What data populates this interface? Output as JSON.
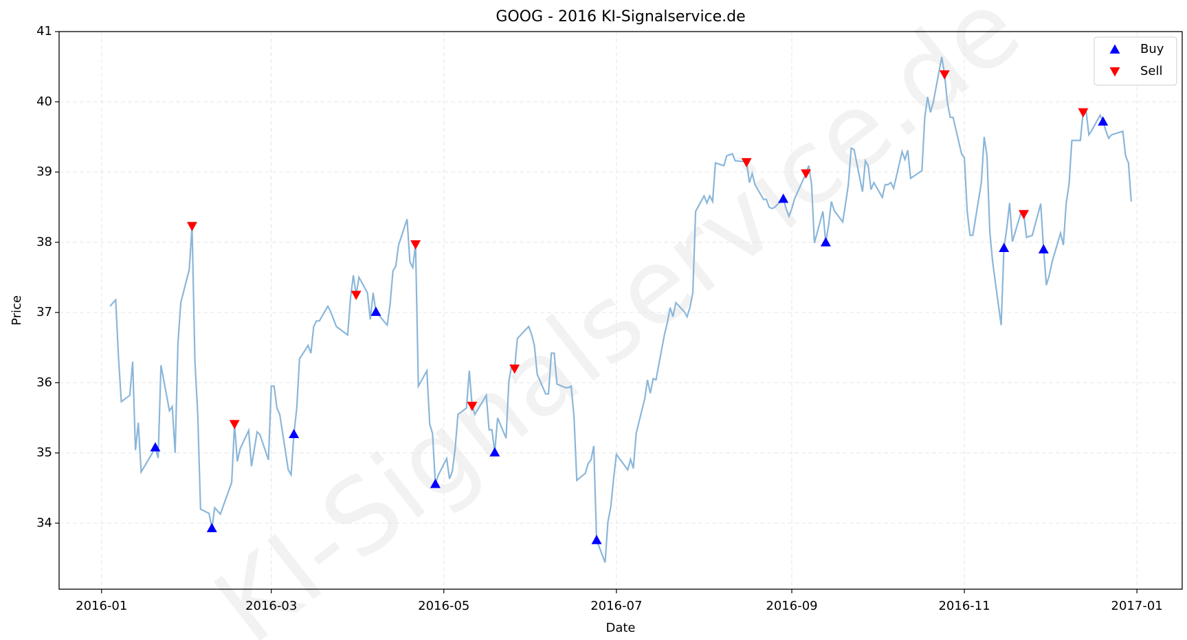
{
  "chart_data": {
    "type": "line",
    "title": "GOOG - 2016 KI-Signalservice.de",
    "watermark": "KI-Signalservice.de",
    "xlabel": "Date",
    "ylabel": "Price",
    "color": "#8ab6d9",
    "x": [
      "2016-01-04",
      "2016-01-06",
      "2016-01-07",
      "2016-01-08",
      "2016-01-11",
      "2016-01-12",
      "2016-01-13",
      "2016-01-14",
      "2016-01-15",
      "2016-01-19",
      "2016-01-20",
      "2016-01-21",
      "2016-01-22",
      "2016-01-25",
      "2016-01-26",
      "2016-01-27",
      "2016-01-28",
      "2016-01-29",
      "2016-02-01",
      "2016-02-02",
      "2016-02-03",
      "2016-02-04",
      "2016-02-05",
      "2016-02-08",
      "2016-02-09",
      "2016-02-10",
      "2016-02-12",
      "2016-02-16",
      "2016-02-17",
      "2016-02-18",
      "2016-02-19",
      "2016-02-22",
      "2016-02-23",
      "2016-02-25",
      "2016-02-26",
      "2016-02-29",
      "2016-03-01",
      "2016-03-02",
      "2016-03-03",
      "2016-03-04",
      "2016-03-07",
      "2016-03-08",
      "2016-03-09",
      "2016-03-10",
      "2016-03-11",
      "2016-03-14",
      "2016-03-15",
      "2016-03-16",
      "2016-03-17",
      "2016-03-18",
      "2016-03-21",
      "2016-03-22",
      "2016-03-24",
      "2016-03-28",
      "2016-03-29",
      "2016-03-30",
      "2016-03-31",
      "2016-04-01",
      "2016-04-04",
      "2016-04-05",
      "2016-04-06",
      "2016-04-07",
      "2016-04-11",
      "2016-04-12",
      "2016-04-13",
      "2016-04-14",
      "2016-04-15",
      "2016-04-18",
      "2016-04-19",
      "2016-04-20",
      "2016-04-21",
      "2016-04-22",
      "2016-04-25",
      "2016-04-26",
      "2016-04-27",
      "2016-04-28",
      "2016-04-29",
      "2016-05-02",
      "2016-05-03",
      "2016-05-04",
      "2016-05-05",
      "2016-05-06",
      "2016-05-09",
      "2016-05-10",
      "2016-05-11",
      "2016-05-12",
      "2016-05-16",
      "2016-05-17",
      "2016-05-18",
      "2016-05-19",
      "2016-05-20",
      "2016-05-23",
      "2016-05-24",
      "2016-05-25",
      "2016-05-26",
      "2016-05-27",
      "2016-05-31",
      "2016-06-01",
      "2016-06-02",
      "2016-06-03",
      "2016-06-06",
      "2016-06-07",
      "2016-06-08",
      "2016-06-09",
      "2016-06-10",
      "2016-06-13",
      "2016-06-14",
      "2016-06-15",
      "2016-06-16",
      "2016-06-17",
      "2016-06-20",
      "2016-06-21",
      "2016-06-22",
      "2016-06-23",
      "2016-06-24",
      "2016-06-27",
      "2016-06-28",
      "2016-06-29",
      "2016-06-30",
      "2016-07-01",
      "2016-07-05",
      "2016-07-06",
      "2016-07-07",
      "2016-07-08",
      "2016-07-11",
      "2016-07-12",
      "2016-07-13",
      "2016-07-14",
      "2016-07-15",
      "2016-07-18",
      "2016-07-19",
      "2016-07-20",
      "2016-07-21",
      "2016-07-22",
      "2016-07-25",
      "2016-07-26",
      "2016-07-27",
      "2016-07-28",
      "2016-07-29",
      "2016-08-01",
      "2016-08-02",
      "2016-08-03",
      "2016-08-04",
      "2016-08-05",
      "2016-08-08",
      "2016-08-09",
      "2016-08-11",
      "2016-08-12",
      "2016-08-15",
      "2016-08-16",
      "2016-08-17",
      "2016-08-18",
      "2016-08-19",
      "2016-08-22",
      "2016-08-23",
      "2016-08-24",
      "2016-08-25",
      "2016-08-26",
      "2016-08-29",
      "2016-08-30",
      "2016-08-31",
      "2016-09-01",
      "2016-09-02",
      "2016-09-06",
      "2016-09-07",
      "2016-09-08",
      "2016-09-09",
      "2016-09-12",
      "2016-09-13",
      "2016-09-14",
      "2016-09-15",
      "2016-09-16",
      "2016-09-19",
      "2016-09-20",
      "2016-09-21",
      "2016-09-22",
      "2016-09-23",
      "2016-09-26",
      "2016-09-27",
      "2016-09-28",
      "2016-09-29",
      "2016-09-30",
      "2016-10-03",
      "2016-10-04",
      "2016-10-05",
      "2016-10-06",
      "2016-10-07",
      "2016-10-10",
      "2016-10-11",
      "2016-10-12",
      "2016-10-13",
      "2016-10-17",
      "2016-10-18",
      "2016-10-19",
      "2016-10-20",
      "2016-10-21",
      "2016-10-24",
      "2016-10-25",
      "2016-10-26",
      "2016-10-27",
      "2016-10-28",
      "2016-10-31",
      "2016-11-01",
      "2016-11-02",
      "2016-11-03",
      "2016-11-04",
      "2016-11-07",
      "2016-11-08",
      "2016-11-09",
      "2016-11-10",
      "2016-11-11",
      "2016-11-14",
      "2016-11-15",
      "2016-11-16",
      "2016-11-17",
      "2016-11-18",
      "2016-11-21",
      "2016-11-22",
      "2016-11-23",
      "2016-11-25",
      "2016-11-28",
      "2016-11-29",
      "2016-11-30",
      "2016-12-01",
      "2016-12-02",
      "2016-12-05",
      "2016-12-06",
      "2016-12-07",
      "2016-12-08",
      "2016-12-09",
      "2016-12-12",
      "2016-12-13",
      "2016-12-14",
      "2016-12-15",
      "2016-12-16",
      "2016-12-19",
      "2016-12-20",
      "2016-12-21",
      "2016-12-22",
      "2016-12-23",
      "2016-12-27",
      "2016-12-28",
      "2016-12-29",
      "2016-12-30"
    ],
    "values": [
      37.09,
      37.18,
      36.36,
      35.73,
      35.82,
      36.3,
      35.04,
      35.43,
      34.73,
      35.0,
      35.08,
      34.93,
      36.25,
      35.6,
      35.66,
      35.0,
      36.56,
      37.14,
      37.61,
      38.23,
      36.31,
      35.55,
      34.2,
      34.14,
      33.93,
      34.22,
      34.13,
      34.58,
      35.41,
      34.88,
      35.06,
      35.32,
      34.81,
      35.3,
      35.26,
      34.9,
      35.95,
      35.95,
      35.64,
      35.55,
      34.76,
      34.69,
      35.27,
      35.63,
      36.34,
      36.53,
      36.42,
      36.8,
      36.88,
      36.88,
      37.09,
      37.01,
      36.8,
      36.68,
      37.2,
      37.53,
      37.25,
      37.5,
      37.28,
      36.9,
      37.28,
      37.01,
      36.82,
      37.12,
      37.59,
      37.66,
      37.96,
      38.33,
      37.72,
      37.64,
      37.97,
      35.95,
      36.17,
      35.41,
      35.28,
      34.56,
      34.68,
      34.92,
      34.63,
      34.74,
      35.06,
      35.55,
      35.64,
      36.17,
      35.67,
      35.55,
      35.82,
      35.33,
      35.33,
      35.01,
      35.5,
      35.21,
      36.02,
      36.25,
      36.2,
      36.63,
      36.8,
      36.69,
      36.53,
      36.12,
      35.84,
      35.84,
      36.42,
      36.42,
      35.98,
      35.93,
      35.93,
      35.95,
      35.52,
      34.61,
      34.71,
      34.85,
      34.9,
      35.1,
      33.76,
      33.44,
      34.02,
      34.23,
      34.63,
      34.98,
      34.76,
      34.91,
      34.78,
      35.28,
      35.77,
      36.04,
      35.85,
      36.06,
      36.04,
      36.69,
      36.85,
      37.07,
      36.94,
      37.14,
      37.01,
      36.94,
      37.07,
      37.28,
      38.44,
      38.66,
      38.56,
      38.66,
      38.58,
      39.13,
      39.09,
      39.23,
      39.26,
      39.16,
      39.15,
      39.14,
      38.85,
      38.98,
      38.82,
      38.61,
      38.61,
      38.5,
      38.48,
      38.5,
      38.62,
      38.48,
      38.37,
      38.48,
      38.62,
      38.98,
      39.09,
      38.82,
      37.99,
      38.44,
      38.0,
      38.24,
      38.58,
      38.45,
      38.29,
      38.55,
      38.82,
      39.34,
      39.32,
      38.72,
      39.16,
      39.09,
      38.75,
      38.85,
      38.64,
      38.82,
      38.82,
      38.85,
      38.77,
      39.29,
      39.18,
      39.31,
      38.91,
      39.02,
      39.78,
      40.07,
      39.85,
      39.99,
      40.64,
      40.39,
      39.99,
      39.78,
      39.78,
      39.26,
      39.2,
      38.44,
      38.1,
      38.1,
      38.85,
      39.5,
      39.23,
      38.15,
      37.72,
      36.82,
      37.92,
      38.2,
      38.56,
      38.01,
      38.42,
      38.4,
      38.07,
      38.1,
      38.55,
      37.9,
      37.39,
      37.53,
      37.72,
      38.13,
      37.96,
      38.55,
      38.83,
      39.45,
      39.45,
      39.85,
      39.88,
      39.53,
      39.59,
      39.81,
      39.72,
      39.59,
      39.48,
      39.53,
      39.58,
      39.23,
      39.13,
      38.58
    ],
    "series": [
      {
        "name": "Buy",
        "color": "#0000ff",
        "marker": "triangle-up",
        "x": [
          "2016-01-20",
          "2016-02-09",
          "2016-03-09",
          "2016-04-07",
          "2016-04-28",
          "2016-05-19",
          "2016-06-24",
          "2016-08-29",
          "2016-09-13",
          "2016-11-15",
          "2016-11-29",
          "2016-12-20"
        ],
        "values": [
          35.08,
          33.93,
          35.27,
          37.01,
          34.56,
          35.01,
          33.76,
          38.62,
          38.0,
          37.92,
          37.9,
          39.72
        ]
      },
      {
        "name": "Sell",
        "color": "#ff0000",
        "marker": "triangle-down",
        "x": [
          "2016-02-02",
          "2016-02-17",
          "2016-03-31",
          "2016-04-21",
          "2016-05-11",
          "2016-05-26",
          "2016-08-16",
          "2016-09-06",
          "2016-10-25",
          "2016-11-22",
          "2016-12-13"
        ],
        "values": [
          38.23,
          35.41,
          37.25,
          37.97,
          35.67,
          36.2,
          39.14,
          38.98,
          40.39,
          38.4,
          39.85
        ]
      }
    ],
    "xlim": [
      "2015-12-17",
      "2017-01-17"
    ],
    "xticks": [
      {
        "value": "2016-01-01",
        "label": "2016-01"
      },
      {
        "value": "2016-03-01",
        "label": "2016-03"
      },
      {
        "value": "2016-05-01",
        "label": "2016-05"
      },
      {
        "value": "2016-07-01",
        "label": "2016-07"
      },
      {
        "value": "2016-09-01",
        "label": "2016-09"
      },
      {
        "value": "2016-11-01",
        "label": "2016-11"
      },
      {
        "value": "2017-01-01",
        "label": "2017-01"
      }
    ],
    "ylim": [
      33.06,
      41
    ],
    "yticks": [
      34,
      35,
      36,
      37,
      38,
      39,
      40,
      41
    ],
    "grid": true,
    "legend": "upper right"
  }
}
